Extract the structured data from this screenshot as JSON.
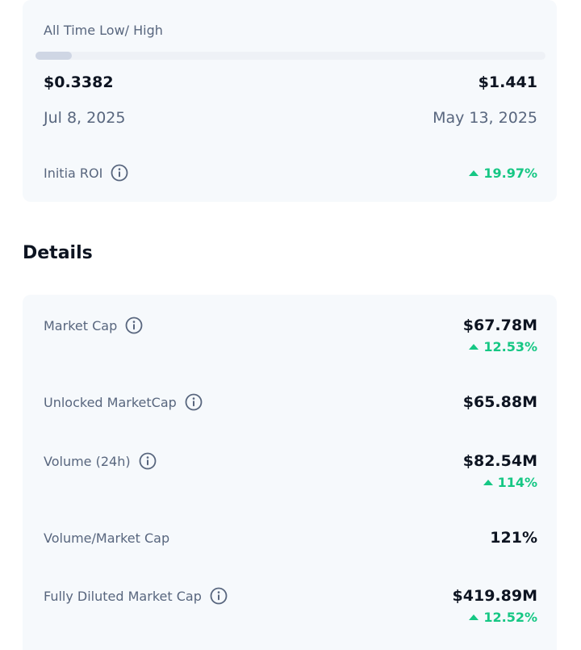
{
  "range_card": {
    "label": "All Time Low/ High",
    "low": {
      "price": "$0.3382",
      "date": "Jul 8, 2025"
    },
    "high": {
      "price": "$1.441",
      "date": "May 13, 2025"
    },
    "roi": {
      "label": "Initia ROI",
      "change": "19.97%"
    }
  },
  "details": {
    "title": "Details",
    "rows": [
      {
        "label": "Market Cap",
        "value": "$67.78M",
        "change": "12.53%",
        "info": true
      },
      {
        "label": "Unlocked MarketCap",
        "value": "$65.88M",
        "info": true
      },
      {
        "label": "Volume (24h)",
        "value": "$82.54M",
        "change": "114%",
        "info": true
      },
      {
        "label": "Volume/Market Cap",
        "value": "121%",
        "info": false
      },
      {
        "label": "Fully Diluted Market Cap",
        "value": "$419.89M",
        "change": "12.52%",
        "info": true
      }
    ]
  }
}
